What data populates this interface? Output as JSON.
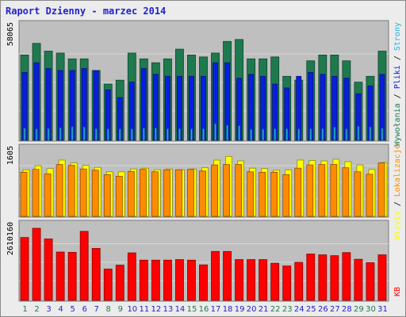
{
  "title": "Raport Dzienny -  marzec 2014",
  "chart_data": {
    "type": "bar",
    "categories": [
      "1",
      "2",
      "3",
      "4",
      "5",
      "6",
      "7",
      "8",
      "9",
      "10",
      "11",
      "12",
      "13",
      "14",
      "15",
      "16",
      "17",
      "18",
      "19",
      "20",
      "21",
      "22",
      "23",
      "24",
      "25",
      "26",
      "27",
      "28",
      "29",
      "30",
      "31"
    ],
    "weekend_days": [
      "1",
      "2",
      "8",
      "9",
      "15",
      "16",
      "22",
      "23",
      "29",
      "30"
    ],
    "panels": [
      {
        "axis_label": "58065",
        "ymax": 58065,
        "series": [
          {
            "name": "Wywołania",
            "color": "#1e7a4e",
            "values": [
              44000,
              50000,
              46000,
              45000,
              42000,
              42000,
              36000,
              29000,
              31000,
              45000,
              42000,
              40000,
              42000,
              47000,
              44000,
              43000,
              45000,
              51000,
              52000,
              42000,
              42000,
              43000,
              33000,
              31000,
              41000,
              44000,
              44000,
              41000,
              30000,
              33000,
              46000
            ]
          },
          {
            "name": "Pliki",
            "color": "#0a1ee0",
            "values": [
              35000,
              40000,
              37000,
              36000,
              36000,
              37000,
              36000,
              26000,
              22000,
              30000,
              37000,
              34000,
              33000,
              33000,
              33000,
              33000,
              40000,
              40000,
              32000,
              34000,
              33000,
              29000,
              27000,
              33000,
              35000,
              34000,
              33000,
              32000,
              24000,
              28000,
              34000
            ]
          },
          {
            "name": "Strony",
            "color": "#1fb3e8",
            "values": [
              6200,
              5800,
              6000,
              6400,
              7000,
              6800,
              5900,
              5800,
              5800,
              5800,
              6200,
              6300,
              5900,
              5900,
              5800,
              5900,
              8500,
              7700,
              7500,
              5600,
              5700,
              5900,
              5900,
              5800,
              5900,
              5900,
              6700,
              5800,
              7200,
              6800,
              6200
            ]
          }
        ]
      },
      {
        "axis_label": "1605",
        "ymax": 1605,
        "series": [
          {
            "name": "Wizyty",
            "color": "#ffff00",
            "values": [
              1150,
              1250,
              1180,
              1390,
              1320,
              1260,
              1210,
              1100,
              1100,
              1170,
              1190,
              1150,
              1170,
              1150,
              1170,
              1200,
              1390,
              1480,
              1370,
              1190,
              1180,
              1140,
              1150,
              1390,
              1380,
              1370,
              1410,
              1350,
              1270,
              1160,
              1330
            ]
          },
          {
            "name": "Lokalizacje",
            "color": "#ff8c00",
            "values": [
              1090,
              1160,
              1050,
              1280,
              1260,
              1170,
              1140,
              1030,
              990,
              1110,
              1160,
              1100,
              1150,
              1150,
              1160,
              1120,
              1270,
              1280,
              1280,
              1100,
              1090,
              1090,
              1030,
              1190,
              1270,
              1280,
              1280,
              1200,
              1100,
              1040,
              1320
            ]
          }
        ]
      },
      {
        "axis_label": "2610160",
        "ymax": 2610160,
        "series": [
          {
            "name": "KB",
            "color": "#ff0000",
            "values": [
              2250000,
              2580000,
              2200000,
              1730000,
              1720000,
              2470000,
              1860000,
              1120000,
              1260000,
              1700000,
              1440000,
              1440000,
              1440000,
              1460000,
              1440000,
              1270000,
              1750000,
              1750000,
              1460000,
              1460000,
              1460000,
              1330000,
              1230000,
              1360000,
              1660000,
              1630000,
              1600000,
              1710000,
              1470000,
              1350000,
              1630000
            ]
          }
        ]
      }
    ],
    "right_labels": [
      {
        "text": "Wywołania",
        "color": "#1e7a4e"
      },
      {
        "text": "Pliki",
        "color": "#0a1ee0"
      },
      {
        "text": "Strony",
        "color": "#1fb3e8"
      },
      {
        "text": "Wizyty",
        "color": "#ffff00"
      },
      {
        "text": "Lokalizacje",
        "color": "#ff8c00"
      },
      {
        "text": "KB",
        "color": "#ff0000"
      }
    ],
    "separator": " / ",
    "tick_colors": {
      "weekday": "#2222cc",
      "weekend": "#1e7a4e"
    }
  }
}
